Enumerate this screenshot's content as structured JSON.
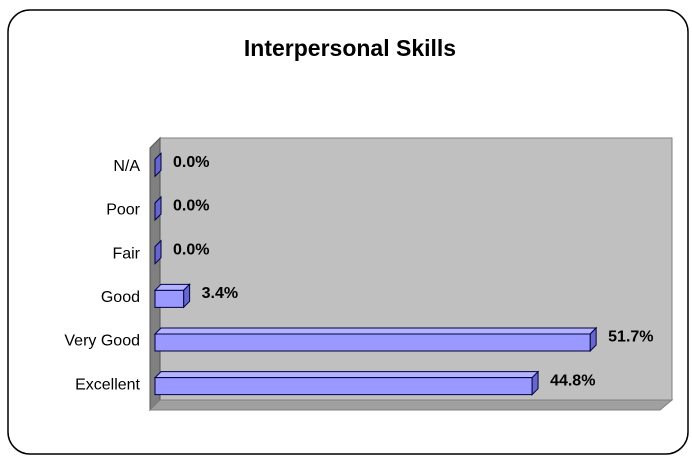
{
  "chart_data": {
    "type": "bar",
    "orientation": "horizontal",
    "title": "Interpersonal Skills",
    "categories": [
      "N/A",
      "Poor",
      "Fair",
      "Good",
      "Very Good",
      "Excellent"
    ],
    "values": [
      0.0,
      0.0,
      0.0,
      3.4,
      51.7,
      44.8
    ],
    "value_labels": [
      "0.0%",
      "0.0%",
      "0.0%",
      "3.4%",
      "51.7%",
      "44.8%"
    ],
    "color": "#9999ff",
    "xlim": [
      0,
      60
    ]
  }
}
